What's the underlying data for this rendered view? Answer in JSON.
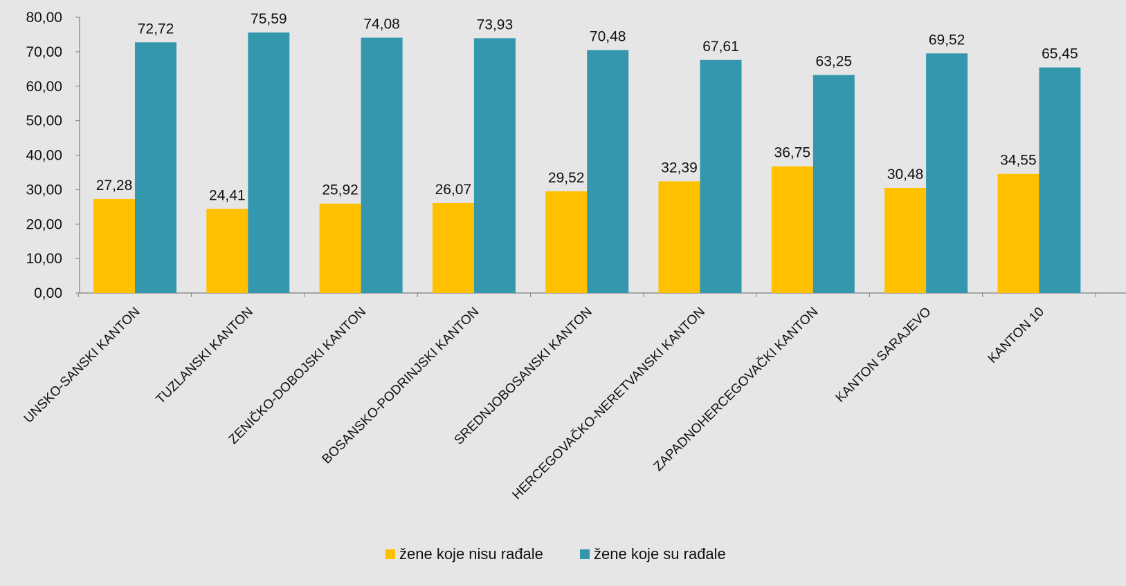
{
  "chart_data": {
    "type": "bar",
    "categories": [
      "UNSKO-SANSKI KANTON",
      "TUZLANSKI KANTON",
      "ZENIČKO-DOBOJSKI KANTON",
      "BOSANSKO-PODRINJSKI KANTON",
      "SREDNJOBOSANSKI KANTON",
      "HERCEGOVAČKO-NERETVANSKI KANTON",
      "ZAPADNOHERCEGOVAČKI KANTON",
      "KANTON SARAJEVO",
      "KANTON 10"
    ],
    "series": [
      {
        "name": "žene koje nisu rađale",
        "color": "#ffc000",
        "values": [
          27.28,
          24.41,
          25.92,
          26.07,
          29.52,
          32.39,
          36.75,
          30.48,
          34.55
        ],
        "labels": [
          "27,28",
          "24,41",
          "25,92",
          "26,07",
          "29,52",
          "32,39",
          "36,75",
          "30,48",
          "34,55"
        ]
      },
      {
        "name": "žene koje su rađale",
        "color": "#3497ae",
        "values": [
          72.72,
          75.59,
          74.08,
          73.93,
          70.48,
          67.61,
          63.25,
          69.52,
          65.45
        ],
        "labels": [
          "72,72",
          "75,59",
          "74,08",
          "73,93",
          "70,48",
          "67,61",
          "63,25",
          "69,52",
          "65,45"
        ]
      }
    ],
    "y_ticks": [
      "0,00",
      "10,00",
      "20,00",
      "30,00",
      "40,00",
      "50,00",
      "60,00",
      "70,00",
      "80,00"
    ],
    "ylim": [
      0,
      80
    ],
    "grid": false,
    "legend_position": "bottom",
    "title": "",
    "xlabel": "",
    "ylabel": ""
  }
}
